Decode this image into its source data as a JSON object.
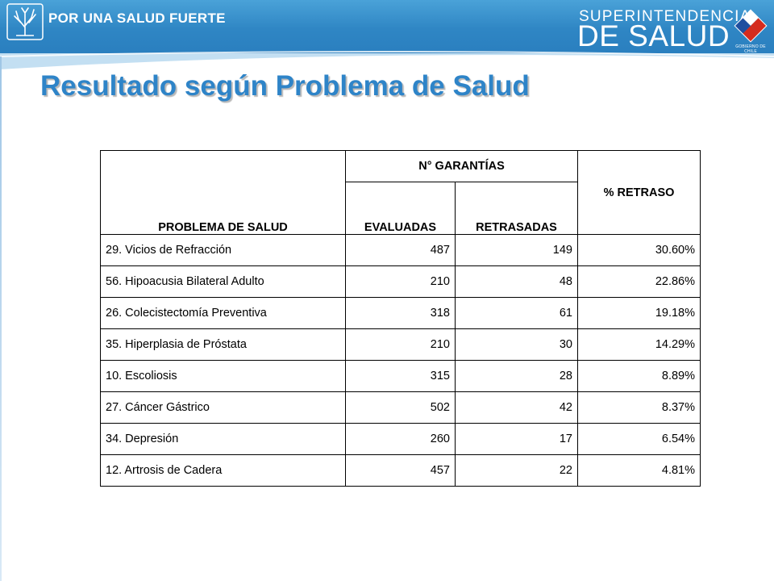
{
  "header": {
    "slogan": "POR UNA SALUD FUERTE",
    "brand_top": "SUPERINTENDENCIA",
    "brand_main": "DE SALUD",
    "gov_text": "GOBIERNO DE CHILE",
    "colors": {
      "header_blue": "#2f86c4",
      "title_blue": "#2e84c8"
    },
    "icons": {
      "left_logo": "tree-logo-icon",
      "right_logo": "government-shield-icon"
    }
  },
  "title": "Resultado según Problema de Salud",
  "table": {
    "headers": {
      "problema": "PROBLEMA DE SALUD",
      "garantias": "N° GARANTÍAS",
      "evaluadas": "EVALUADAS",
      "retrasadas": "RETRASADAS",
      "retraso": "% RETRASO"
    },
    "rows": [
      {
        "problema": "29. Vicios de Refracción",
        "evaluadas": "487",
        "retrasadas": "149",
        "retraso": "30.60%"
      },
      {
        "problema": "56. Hipoacusia Bilateral Adulto",
        "evaluadas": "210",
        "retrasadas": "48",
        "retraso": "22.86%"
      },
      {
        "problema": "26. Colecistectomía Preventiva",
        "evaluadas": "318",
        "retrasadas": "61",
        "retraso": "19.18%"
      },
      {
        "problema": "35. Hiperplasia de Próstata",
        "evaluadas": "210",
        "retrasadas": "30",
        "retraso": "14.29%"
      },
      {
        "problema": "10. Escoliosis",
        "evaluadas": "315",
        "retrasadas": "28",
        "retraso": "8.89%"
      },
      {
        "problema": "27. Cáncer Gástrico",
        "evaluadas": "502",
        "retrasadas": "42",
        "retraso": "8.37%"
      },
      {
        "problema": "34. Depresión",
        "evaluadas": "260",
        "retrasadas": "17",
        "retraso": "6.54%"
      },
      {
        "problema": "12. Artrosis de Cadera",
        "evaluadas": "457",
        "retrasadas": "22",
        "retraso": "4.81%"
      }
    ]
  }
}
